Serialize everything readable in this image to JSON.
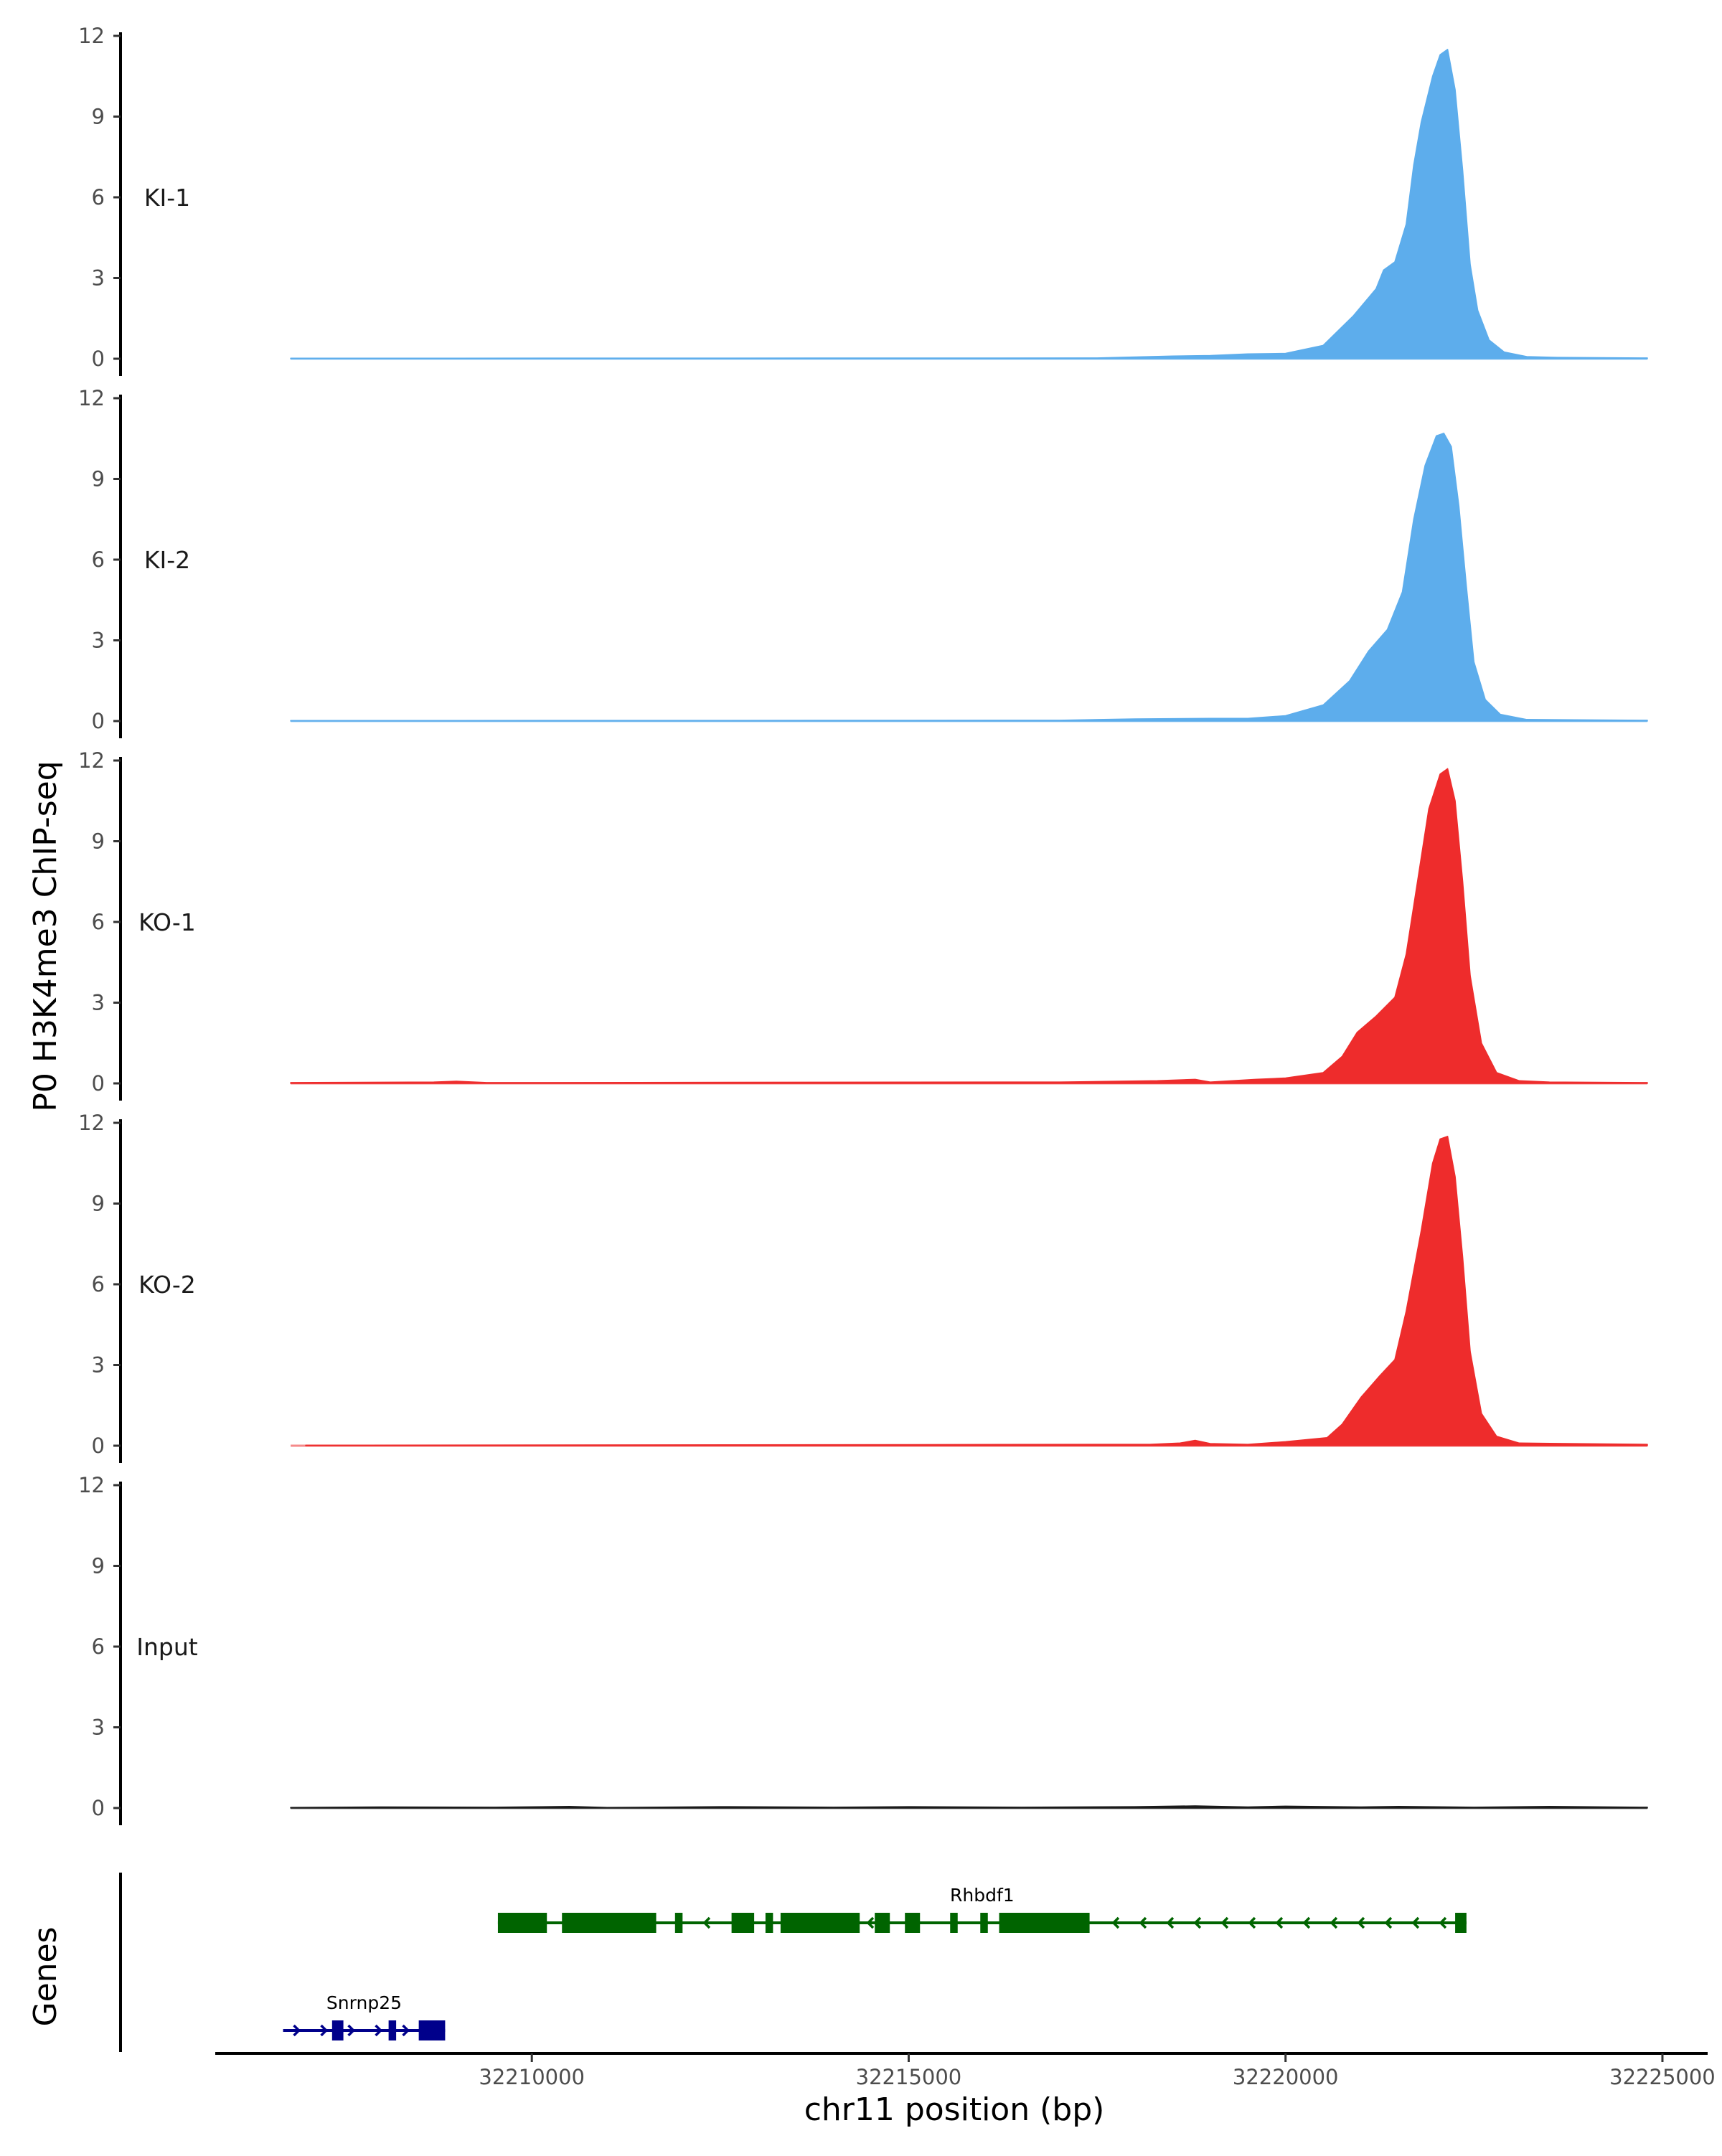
{
  "chart_data": {
    "type": "area",
    "ylabel": "P0 H3K4me3 ChIP-seq",
    "xlabel": "chr11 position (bp)",
    "xlim": [
      32205800,
      32225600
    ],
    "x_ticks": [
      32210000,
      32215000,
      32220000,
      32225000
    ],
    "x_tick_labels": [
      "32210000",
      "32215000",
      "32220000",
      "32225000"
    ],
    "ylim": [
      0,
      12
    ],
    "y_ticks": [
      0,
      3,
      6,
      9,
      12
    ],
    "y_tick_labels": [
      "0",
      "3",
      "6",
      "9",
      "12"
    ],
    "signal_range": [
      32206800,
      32224800
    ],
    "tracks": [
      {
        "name": "KI-1",
        "color": "#5DADEC",
        "points": [
          [
            32206800,
            0.02
          ],
          [
            32217500,
            0.03
          ],
          [
            32218500,
            0.1
          ],
          [
            32219000,
            0.12
          ],
          [
            32219500,
            0.18
          ],
          [
            32220000,
            0.2
          ],
          [
            32220500,
            0.5
          ],
          [
            32220900,
            1.6
          ],
          [
            32221200,
            2.6
          ],
          [
            32221300,
            3.3
          ],
          [
            32221450,
            3.6
          ],
          [
            32221600,
            5.0
          ],
          [
            32221700,
            7.2
          ],
          [
            32221800,
            8.8
          ],
          [
            32221950,
            10.5
          ],
          [
            32222050,
            11.3
          ],
          [
            32222150,
            11.5
          ],
          [
            32222250,
            10.0
          ],
          [
            32222350,
            7.0
          ],
          [
            32222450,
            3.5
          ],
          [
            32222550,
            1.8
          ],
          [
            32222700,
            0.7
          ],
          [
            32222900,
            0.25
          ],
          [
            32223200,
            0.08
          ],
          [
            32223600,
            0.05
          ],
          [
            32224800,
            0.03
          ]
        ]
      },
      {
        "name": "KI-2",
        "color": "#5DADEC",
        "points": [
          [
            32206800,
            0.02
          ],
          [
            32217000,
            0.03
          ],
          [
            32218000,
            0.08
          ],
          [
            32219000,
            0.1
          ],
          [
            32219500,
            0.1
          ],
          [
            32220000,
            0.2
          ],
          [
            32220500,
            0.6
          ],
          [
            32220850,
            1.5
          ],
          [
            32221100,
            2.6
          ],
          [
            32221350,
            3.4
          ],
          [
            32221550,
            4.8
          ],
          [
            32221700,
            7.5
          ],
          [
            32221850,
            9.5
          ],
          [
            32222000,
            10.6
          ],
          [
            32222100,
            10.7
          ],
          [
            32222200,
            10.2
          ],
          [
            32222300,
            8.0
          ],
          [
            32222400,
            5.0
          ],
          [
            32222500,
            2.2
          ],
          [
            32222650,
            0.8
          ],
          [
            32222850,
            0.25
          ],
          [
            32223200,
            0.06
          ],
          [
            32224800,
            0.03
          ]
        ]
      },
      {
        "name": "KO-1",
        "color": "#EE2C2C",
        "points": [
          [
            32206800,
            0.03
          ],
          [
            32208700,
            0.05
          ],
          [
            32209000,
            0.08
          ],
          [
            32209400,
            0.03
          ],
          [
            32217000,
            0.05
          ],
          [
            32218300,
            0.1
          ],
          [
            32218800,
            0.15
          ],
          [
            32219000,
            0.05
          ],
          [
            32219600,
            0.15
          ],
          [
            32220000,
            0.2
          ],
          [
            32220500,
            0.4
          ],
          [
            32220750,
            1.0
          ],
          [
            32220950,
            1.9
          ],
          [
            32221200,
            2.5
          ],
          [
            32221450,
            3.2
          ],
          [
            32221600,
            4.8
          ],
          [
            32221750,
            7.5
          ],
          [
            32221900,
            10.2
          ],
          [
            32222050,
            11.5
          ],
          [
            32222150,
            11.7
          ],
          [
            32222250,
            10.5
          ],
          [
            32222350,
            7.5
          ],
          [
            32222450,
            4.0
          ],
          [
            32222600,
            1.5
          ],
          [
            32222800,
            0.4
          ],
          [
            32223100,
            0.1
          ],
          [
            32223500,
            0.05
          ],
          [
            32224800,
            0.03
          ]
        ]
      },
      {
        "name": "KO-2",
        "color": "#EE2C2C",
        "points": [
          [
            32207000,
            0.02
          ],
          [
            32218200,
            0.05
          ],
          [
            32218600,
            0.1
          ],
          [
            32218800,
            0.2
          ],
          [
            32219000,
            0.08
          ],
          [
            32219500,
            0.05
          ],
          [
            32220000,
            0.15
          ],
          [
            32220550,
            0.3
          ],
          [
            32220750,
            0.8
          ],
          [
            32221000,
            1.8
          ],
          [
            32221250,
            2.6
          ],
          [
            32221450,
            3.2
          ],
          [
            32221600,
            5.0
          ],
          [
            32221800,
            8.0
          ],
          [
            32221950,
            10.5
          ],
          [
            32222050,
            11.4
          ],
          [
            32222150,
            11.5
          ],
          [
            32222250,
            10.0
          ],
          [
            32222350,
            7.0
          ],
          [
            32222450,
            3.5
          ],
          [
            32222600,
            1.2
          ],
          [
            32222800,
            0.35
          ],
          [
            32223100,
            0.1
          ],
          [
            32224800,
            0.05
          ]
        ]
      },
      {
        "name": "Input",
        "color": "#1A1A1A",
        "points": [
          [
            32206800,
            0.02
          ],
          [
            32208000,
            0.04
          ],
          [
            32209500,
            0.03
          ],
          [
            32210500,
            0.06
          ],
          [
            32211000,
            0.02
          ],
          [
            32212500,
            0.05
          ],
          [
            32214000,
            0.03
          ],
          [
            32215000,
            0.05
          ],
          [
            32216500,
            0.03
          ],
          [
            32218000,
            0.05
          ],
          [
            32218800,
            0.08
          ],
          [
            32219500,
            0.04
          ],
          [
            32220000,
            0.07
          ],
          [
            32221000,
            0.04
          ],
          [
            32221500,
            0.06
          ],
          [
            32222500,
            0.03
          ],
          [
            32223500,
            0.06
          ],
          [
            32224800,
            0.03
          ]
        ]
      }
    ],
    "genes_panel": {
      "label": "Genes",
      "genes": [
        {
          "name": "Rhbdf1",
          "color": "#006400",
          "strand": "-",
          "row": 1,
          "start": 32209550,
          "end": 32222400,
          "exons": [
            [
              32209550,
              32210200
            ],
            [
              32210400,
              32211650
            ],
            [
              32211900,
              32212000
            ],
            [
              32212650,
              32212950
            ],
            [
              32213100,
              32213200
            ],
            [
              32213300,
              32214350
            ],
            [
              32214550,
              32214750
            ],
            [
              32214950,
              32215150
            ],
            [
              32215550,
              32215650
            ],
            [
              32215950,
              32216050
            ],
            [
              32216200,
              32217400
            ],
            [
              32222250,
              32222400
            ]
          ]
        },
        {
          "name": "Snrnp25",
          "color": "#00008B",
          "strand": "+",
          "row": 2,
          "start": 32206700,
          "end": 32208850,
          "exons": [
            [
              32207350,
              32207500
            ],
            [
              32208100,
              32208200
            ],
            [
              32208500,
              32208850
            ]
          ]
        }
      ]
    }
  }
}
